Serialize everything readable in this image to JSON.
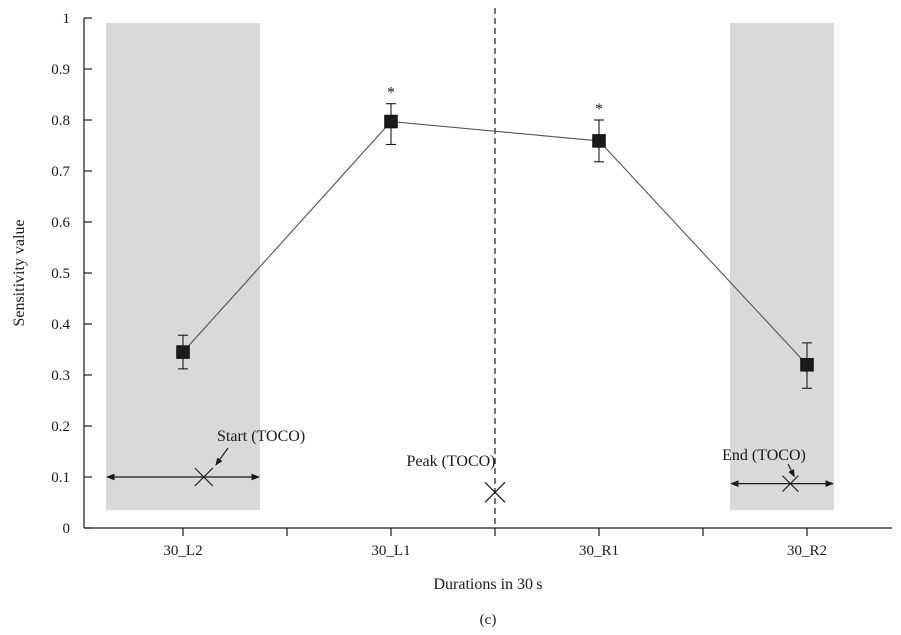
{
  "chart_data": {
    "type": "line",
    "panel_label": "(c)",
    "xlabel": "Durations in 30 s",
    "ylabel": "Sensitivity value",
    "categories": [
      "30_L2",
      "30_L1",
      "30_R1",
      "30_R2"
    ],
    "values": [
      0.345,
      0.797,
      0.759,
      0.32
    ],
    "error_upper": [
      0.378,
      0.832,
      0.8,
      0.363
    ],
    "error_lower": [
      0.312,
      0.752,
      0.718,
      0.274
    ],
    "significance_marks": [
      "",
      "*",
      "*",
      ""
    ],
    "ylim": [
      0,
      1
    ],
    "yticks": [
      "0",
      "0.1",
      "0.2",
      "0.3",
      "0.4",
      "0.5",
      "0.6",
      "0.7",
      "0.8",
      "0.9",
      "1"
    ],
    "grid": false,
    "shaded_regions": [
      {
        "x_from": -0.37,
        "x_to": 0.37,
        "y_from": 0.035,
        "y_to": 0.99
      },
      {
        "x_from": 2.63,
        "x_to": 3.13,
        "y_from": 0.035,
        "y_to": 0.99
      }
    ],
    "dashed_line_x": 1.5,
    "annotations": [
      {
        "text": "Start (TOCO)",
        "x": 0.1,
        "y": 0.1,
        "extent_from": -0.37,
        "extent_to": 0.37
      },
      {
        "text": "Peak (TOCO)",
        "x": 1.5,
        "y": 0.07
      },
      {
        "text": "End (TOCO)",
        "x": 2.92,
        "y": 0.087,
        "extent_from": 2.63,
        "extent_to": 3.13
      }
    ]
  }
}
